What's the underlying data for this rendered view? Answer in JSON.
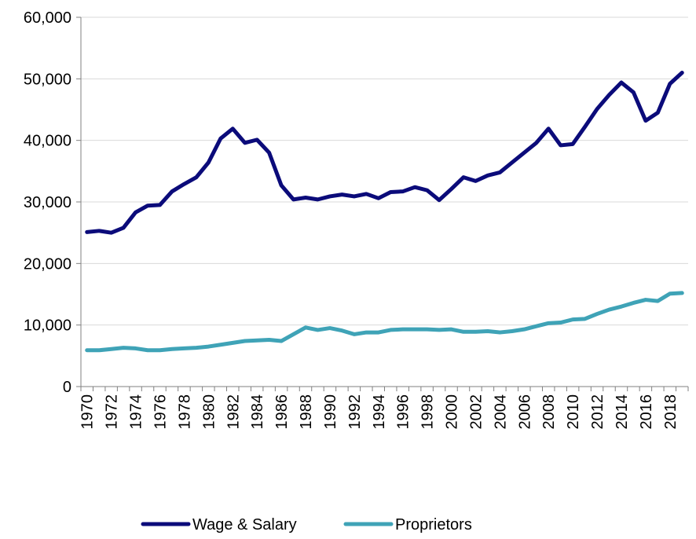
{
  "chart_data": {
    "type": "line",
    "title": "",
    "xlabel": "",
    "ylabel": "",
    "ylim": [
      0,
      60000
    ],
    "yticks": [
      "0",
      "10,000",
      "20,000",
      "30,000",
      "40,000",
      "50,000",
      "60,000"
    ],
    "ytick_values": [
      0,
      10000,
      20000,
      30000,
      40000,
      50000,
      60000
    ],
    "grid": true,
    "legend_position": "bottom",
    "x": [
      1970,
      1971,
      1972,
      1973,
      1974,
      1975,
      1976,
      1977,
      1978,
      1979,
      1980,
      1981,
      1982,
      1983,
      1984,
      1985,
      1986,
      1987,
      1988,
      1989,
      1990,
      1991,
      1992,
      1993,
      1994,
      1995,
      1996,
      1997,
      1998,
      1999,
      2000,
      2001,
      2002,
      2003,
      2004,
      2005,
      2006,
      2007,
      2008,
      2009,
      2010,
      2011,
      2012,
      2013,
      2014,
      2015,
      2016,
      2017,
      2018,
      2019
    ],
    "xticks": [
      "1970",
      "1972",
      "1974",
      "1976",
      "1978",
      "1980",
      "1982",
      "1984",
      "1986",
      "1988",
      "1990",
      "1992",
      "1994",
      "1996",
      "1998",
      "2000",
      "2002",
      "2004",
      "2006",
      "2008",
      "2010",
      "2012",
      "2014",
      "2016",
      "2018"
    ],
    "series": [
      {
        "name": "Wage & Salary",
        "color": "#0b0b7a",
        "values": [
          25100,
          25300,
          25000,
          25800,
          28300,
          29400,
          29500,
          31700,
          32900,
          34000,
          36400,
          40300,
          41900,
          39600,
          40100,
          38000,
          32700,
          30400,
          30700,
          30400,
          30900,
          31200,
          30900,
          31300,
          30600,
          31600,
          31700,
          32400,
          31900,
          30300,
          32100,
          34000,
          33400,
          34300,
          34800,
          36400,
          38000,
          39600,
          41900,
          39200,
          39400,
          42200,
          45100,
          47400,
          49400,
          47800,
          43200,
          44500,
          49200,
          51000
        ]
      },
      {
        "name": "Proprietors",
        "color": "#3fa3b7",
        "values": [
          5900,
          5900,
          6100,
          6300,
          6200,
          5900,
          5900,
          6100,
          6200,
          6300,
          6500,
          6800,
          7100,
          7400,
          7500,
          7600,
          7400,
          8500,
          9600,
          9200,
          9500,
          9100,
          8500,
          8800,
          8800,
          9200,
          9300,
          9300,
          9300,
          9200,
          9300,
          8900,
          8900,
          9000,
          8800,
          9000,
          9300,
          9800,
          10300,
          10400,
          10900,
          11000,
          11800,
          12500,
          13000,
          13600,
          14100,
          13900,
          15100,
          15200
        ]
      }
    ]
  }
}
